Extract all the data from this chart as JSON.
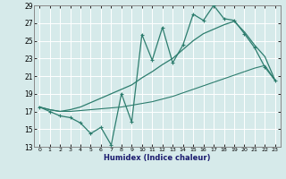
{
  "xlabel": "Humidex (Indice chaleur)",
  "bg_color": "#d6eaea",
  "grid_color": "#ffffff",
  "line_color": "#2d7d6e",
  "xlim_min": -0.5,
  "xlim_max": 23.5,
  "ylim_min": 13,
  "ylim_max": 29,
  "xticks": [
    0,
    1,
    2,
    3,
    4,
    5,
    6,
    7,
    8,
    9,
    10,
    11,
    12,
    13,
    14,
    15,
    16,
    17,
    18,
    19,
    20,
    21,
    22,
    23
  ],
  "yticks": [
    13,
    15,
    17,
    19,
    21,
    23,
    25,
    27,
    29
  ],
  "line_jagged_x": [
    0,
    1,
    2,
    3,
    4,
    5,
    6,
    7,
    8,
    9,
    10,
    11,
    12,
    13,
    14,
    15,
    16,
    17,
    18,
    19,
    20,
    21,
    22,
    23
  ],
  "line_jagged_y": [
    17.5,
    17.0,
    16.5,
    16.3,
    15.7,
    14.5,
    15.2,
    13.2,
    19.0,
    15.8,
    25.7,
    22.8,
    26.5,
    22.5,
    24.5,
    28.0,
    27.3,
    29.0,
    27.5,
    27.3,
    25.8,
    24.2,
    22.0,
    20.5
  ],
  "line_smooth_x": [
    0,
    1,
    2,
    3,
    4,
    5,
    6,
    7,
    8,
    9,
    10,
    11,
    12,
    13,
    14,
    15,
    16,
    17,
    18,
    19,
    20,
    21,
    22,
    23
  ],
  "line_smooth_y": [
    17.5,
    17.2,
    17.0,
    17.2,
    17.5,
    18.0,
    18.5,
    19.0,
    19.5,
    20.0,
    20.8,
    21.5,
    22.3,
    23.0,
    24.0,
    25.0,
    25.8,
    26.3,
    26.8,
    27.2,
    26.0,
    24.5,
    23.2,
    20.5
  ],
  "line_lower_x": [
    0,
    1,
    2,
    3,
    4,
    5,
    6,
    7,
    8,
    9,
    10,
    11,
    12,
    13,
    14,
    15,
    16,
    17,
    18,
    19,
    20,
    21,
    22,
    23
  ],
  "line_lower_y": [
    17.5,
    17.2,
    17.0,
    17.0,
    17.1,
    17.2,
    17.3,
    17.4,
    17.5,
    17.7,
    17.9,
    18.1,
    18.4,
    18.7,
    19.1,
    19.5,
    19.9,
    20.3,
    20.7,
    21.1,
    21.5,
    21.9,
    22.2,
    20.5
  ]
}
